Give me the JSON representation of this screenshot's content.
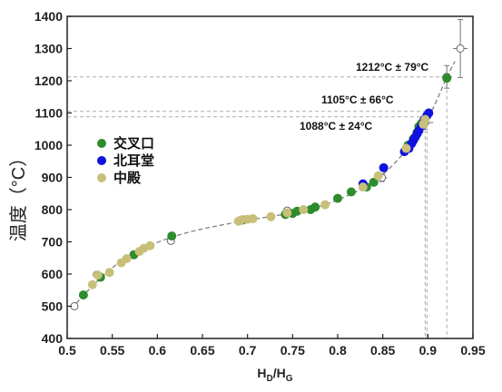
{
  "chart_data": {
    "type": "scatter",
    "title": "",
    "xlabel_main": "H",
    "xlabel_sub1": "D",
    "xlabel_mid": "/H",
    "xlabel_sub2": "G",
    "ylabel": "温度（°C）",
    "xlim": [
      0.5,
      0.95
    ],
    "ylim": [
      400,
      1400
    ],
    "xticks": [
      "0.5",
      "0.55",
      "0.6",
      "0.65",
      "0.7",
      "0.75",
      "0.8",
      "0.85",
      "0.9",
      "0.95"
    ],
    "yticks": [
      "400",
      "500",
      "600",
      "700",
      "800",
      "900",
      "1000",
      "1100",
      "1200",
      "1300",
      "1400"
    ],
    "grid": false,
    "legend_position": "left",
    "colors": {
      "jiaochakou": "#2e8b2e",
      "beierdang": "#1010e0",
      "zhongdian": "#c8c07a",
      "fit": "#888888",
      "ref": "#888888"
    },
    "series": [
      {
        "name": "交叉口",
        "color": "#2e8b2e",
        "points": [
          [
            0.518,
            535
          ],
          [
            0.537,
            590
          ],
          [
            0.574,
            660
          ],
          [
            0.616,
            718
          ],
          [
            0.695,
            768
          ],
          [
            0.742,
            785
          ],
          [
            0.75,
            788
          ],
          [
            0.755,
            795
          ],
          [
            0.77,
            800
          ],
          [
            0.775,
            808
          ],
          [
            0.8,
            835
          ],
          [
            0.815,
            855
          ],
          [
            0.832,
            870
          ],
          [
            0.84,
            885
          ],
          [
            0.878,
            1000
          ],
          [
            0.884,
            1020
          ],
          [
            0.888,
            1040
          ],
          [
            0.89,
            1058
          ],
          [
            0.893,
            1068
          ],
          [
            0.921,
            1208
          ]
        ]
      },
      {
        "name": "北耳堂",
        "color": "#1010e0",
        "points": [
          [
            0.828,
            880
          ],
          [
            0.851,
            930
          ],
          [
            0.874,
            980
          ],
          [
            0.879,
            990
          ],
          [
            0.882,
            1005
          ],
          [
            0.884,
            1015
          ],
          [
            0.886,
            1025
          ],
          [
            0.888,
            1035
          ],
          [
            0.89,
            1045
          ],
          [
            0.893,
            1060
          ],
          [
            0.896,
            1080
          ],
          [
            0.899,
            1092
          ],
          [
            0.901,
            1100
          ]
        ]
      },
      {
        "name": "中殿",
        "color": "#c8c07a",
        "points": [
          [
            0.528,
            567
          ],
          [
            0.534,
            597
          ],
          [
            0.547,
            605
          ],
          [
            0.56,
            635
          ],
          [
            0.566,
            648
          ],
          [
            0.58,
            670
          ],
          [
            0.585,
            680
          ],
          [
            0.592,
            688
          ],
          [
            0.69,
            764
          ],
          [
            0.693,
            768
          ],
          [
            0.7,
            770
          ],
          [
            0.706,
            772
          ],
          [
            0.726,
            778
          ],
          [
            0.744,
            790
          ],
          [
            0.762,
            800
          ],
          [
            0.786,
            815
          ],
          [
            0.828,
            870
          ],
          [
            0.845,
            905
          ],
          [
            0.876,
            990
          ],
          [
            0.895,
            1065
          ],
          [
            0.897,
            1080
          ]
        ]
      }
    ],
    "reference_points": [
      {
        "x": 0.508,
        "y": 500
      },
      {
        "x": 0.533,
        "y": 598
      },
      {
        "x": 0.615,
        "y": 703
      },
      {
        "x": 0.744,
        "y": 797
      },
      {
        "x": 0.849,
        "y": 899,
        "xerr": 0.006,
        "yerr": 12
      },
      {
        "x": 0.897,
        "y": 1070,
        "xerr": 0.009,
        "yerr": 20
      },
      {
        "x": 0.921,
        "y": 1212,
        "xerr": 0.006,
        "yerr": 35
      },
      {
        "x": 0.936,
        "y": 1300,
        "xerr": 0.008,
        "yerr": 90
      }
    ],
    "fit_curve": [
      [
        0.505,
        492
      ],
      [
        0.52,
        540
      ],
      [
        0.54,
        595
      ],
      [
        0.56,
        640
      ],
      [
        0.58,
        672
      ],
      [
        0.6,
        698
      ],
      [
        0.62,
        718
      ],
      [
        0.65,
        740
      ],
      [
        0.7,
        767
      ],
      [
        0.75,
        790
      ],
      [
        0.78,
        810
      ],
      [
        0.8,
        830
      ],
      [
        0.82,
        855
      ],
      [
        0.84,
        888
      ],
      [
        0.86,
        935
      ],
      [
        0.88,
        1000
      ],
      [
        0.9,
        1085
      ],
      [
        0.91,
        1140
      ],
      [
        0.92,
        1205
      ],
      [
        0.93,
        1260
      ]
    ],
    "annotations": [
      {
        "text": "1212°C ± 79°C",
        "x_ref": 0.921,
        "y_ref": 1212
      },
      {
        "text": "1105°C ± 66°C",
        "x_ref": 0.899,
        "y_ref": 1105
      },
      {
        "text": "1088°C ± 24°C",
        "x_ref": 0.897,
        "y_ref": 1088
      }
    ]
  }
}
